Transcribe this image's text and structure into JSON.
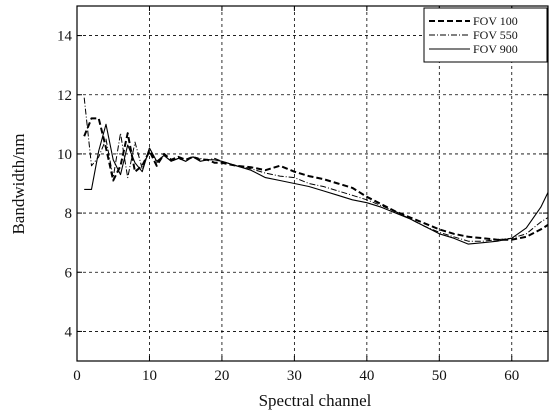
{
  "chart_data": {
    "type": "line",
    "title": "",
    "xlabel": "Spectral channel",
    "ylabel": "Bandwidth/nm",
    "xlim": [
      0,
      65
    ],
    "ylim": [
      3,
      15
    ],
    "x_ticks": [
      0,
      10,
      20,
      30,
      40,
      50,
      60
    ],
    "y_ticks": [
      4,
      6,
      8,
      10,
      12,
      14
    ],
    "grid": true,
    "legend_position": "top-right",
    "series": [
      {
        "name": "FOV 100",
        "style": "dashed",
        "x": [
          1,
          2,
          3,
          4,
          5,
          6,
          7,
          8,
          9,
          10,
          11,
          12,
          13,
          14,
          15,
          16,
          17,
          18,
          19,
          20,
          22,
          24,
          26,
          28,
          30,
          32,
          34,
          36,
          38,
          40,
          42,
          44,
          46,
          48,
          50,
          52,
          54,
          56,
          58,
          60,
          62,
          64,
          65
        ],
        "y": [
          10.6,
          11.2,
          11.2,
          10.2,
          9.1,
          9.6,
          10.7,
          9.4,
          9.6,
          10.1,
          9.6,
          10.0,
          9.8,
          9.9,
          9.8,
          9.9,
          9.8,
          9.8,
          9.7,
          9.7,
          9.6,
          9.55,
          9.45,
          9.6,
          9.4,
          9.25,
          9.15,
          9.0,
          8.85,
          8.55,
          8.3,
          8.05,
          7.85,
          7.65,
          7.45,
          7.3,
          7.2,
          7.15,
          7.1,
          7.1,
          7.2,
          7.45,
          7.6
        ]
      },
      {
        "name": "FOV 550",
        "style": "dashdot",
        "x": [
          1,
          2,
          3,
          4,
          5,
          6,
          7,
          8,
          9,
          10,
          11,
          12,
          13,
          14,
          15,
          16,
          17,
          18,
          19,
          20,
          22,
          24,
          26,
          28,
          30,
          32,
          34,
          36,
          38,
          40,
          42,
          44,
          46,
          48,
          50,
          52,
          54,
          56,
          58,
          60,
          62,
          64,
          65
        ],
        "y": [
          11.9,
          9.6,
          9.9,
          10.5,
          9.2,
          10.7,
          9.2,
          10.4,
          9.5,
          10.2,
          9.7,
          9.95,
          9.75,
          9.85,
          9.75,
          9.9,
          9.85,
          9.8,
          9.85,
          9.75,
          9.6,
          9.5,
          9.35,
          9.25,
          9.2,
          9.0,
          8.9,
          8.75,
          8.6,
          8.45,
          8.25,
          8.05,
          7.8,
          7.55,
          7.35,
          7.2,
          7.05,
          7.05,
          7.1,
          7.15,
          7.3,
          7.7,
          7.85
        ]
      },
      {
        "name": "FOV 900",
        "style": "solid",
        "x": [
          1,
          2,
          3,
          4,
          5,
          6,
          7,
          8,
          9,
          10,
          11,
          12,
          13,
          14,
          15,
          16,
          17,
          18,
          19,
          20,
          22,
          24,
          26,
          28,
          30,
          32,
          34,
          36,
          38,
          40,
          42,
          44,
          46,
          48,
          50,
          52,
          54,
          56,
          58,
          60,
          62,
          64,
          65
        ],
        "y": [
          8.8,
          8.8,
          10.1,
          11.0,
          9.8,
          9.3,
          10.3,
          9.7,
          9.4,
          10.2,
          9.75,
          9.95,
          9.75,
          9.85,
          9.75,
          9.9,
          9.75,
          9.8,
          9.8,
          9.75,
          9.6,
          9.45,
          9.2,
          9.1,
          9.0,
          8.9,
          8.75,
          8.6,
          8.45,
          8.35,
          8.2,
          8.0,
          7.8,
          7.55,
          7.3,
          7.15,
          6.95,
          7.0,
          7.05,
          7.15,
          7.5,
          8.2,
          8.7
        ]
      }
    ]
  }
}
